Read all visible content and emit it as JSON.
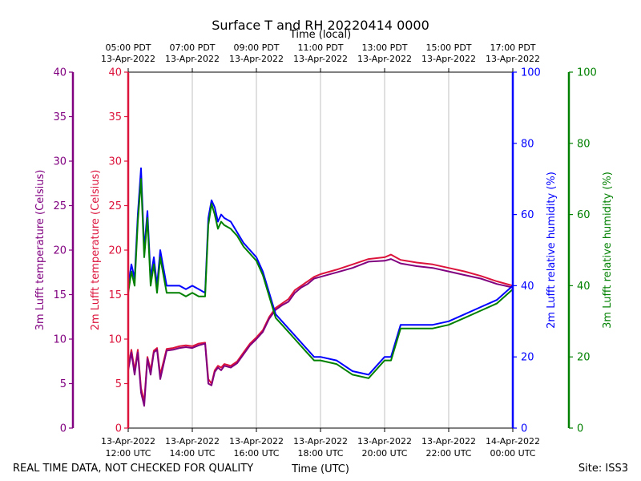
{
  "chart_data": {
    "type": "line",
    "title": "Surface T and RH 20220414 0000",
    "top_axis_label": "Time (local)",
    "bottom_axis_label": "Time (UTC)",
    "footer_left": "REAL TIME DATA, NOT CHECKED FOR QUALITY",
    "footer_right": "Site: ISS3",
    "x_range_hours_utc": [
      12,
      24
    ],
    "bottom_ticks": [
      {
        "hour": 12,
        "line1": "13-Apr-2022",
        "line2": "12:00 UTC"
      },
      {
        "hour": 14,
        "line1": "13-Apr-2022",
        "line2": "14:00 UTC"
      },
      {
        "hour": 16,
        "line1": "13-Apr-2022",
        "line2": "16:00 UTC"
      },
      {
        "hour": 18,
        "line1": "13-Apr-2022",
        "line2": "18:00 UTC"
      },
      {
        "hour": 20,
        "line1": "13-Apr-2022",
        "line2": "20:00 UTC"
      },
      {
        "hour": 22,
        "line1": "13-Apr-2022",
        "line2": "22:00 UTC"
      },
      {
        "hour": 24,
        "line1": "14-Apr-2022",
        "line2": "00:00 UTC"
      }
    ],
    "top_ticks": [
      {
        "hour": 12,
        "line1": "05:00 PDT",
        "line2": "13-Apr-2022"
      },
      {
        "hour": 14,
        "line1": "07:00 PDT",
        "line2": "13-Apr-2022"
      },
      {
        "hour": 16,
        "line1": "09:00 PDT",
        "line2": "13-Apr-2022"
      },
      {
        "hour": 18,
        "line1": "11:00 PDT",
        "line2": "13-Apr-2022"
      },
      {
        "hour": 20,
        "line1": "13:00 PDT",
        "line2": "13-Apr-2022"
      },
      {
        "hour": 22,
        "line1": "15:00 PDT",
        "line2": "13-Apr-2022"
      },
      {
        "hour": 24,
        "line1": "17:00 PDT",
        "line2": "13-Apr-2022"
      }
    ],
    "y_axes": [
      {
        "id": "t3m",
        "label": "3m Lufft temperature (Celsius)",
        "color": "#800080",
        "range": [
          0,
          40
        ],
        "ticks": [
          0,
          5,
          10,
          15,
          20,
          25,
          30,
          35,
          40
        ]
      },
      {
        "id": "t2m",
        "label": "2m Lufft temperature (Celsius)",
        "color": "#dc143c",
        "range": [
          0,
          40
        ],
        "ticks": [
          0,
          5,
          10,
          15,
          20,
          25,
          30,
          35,
          40
        ]
      },
      {
        "id": "rh2m",
        "label": "2m Lufft relative humidity (%)",
        "color": "#0000ff",
        "range": [
          0,
          100
        ],
        "ticks": [
          0,
          20,
          40,
          60,
          80,
          100
        ]
      },
      {
        "id": "rh3m",
        "label": "3m Lufft relative humidity (%)",
        "color": "#008000",
        "range": [
          0,
          100
        ],
        "ticks": [
          0,
          20,
          40,
          60,
          80,
          100
        ]
      }
    ],
    "grid": "vertical",
    "series": [
      {
        "axis": "t2m",
        "color": "#dc143c",
        "x": [
          12.0,
          12.1,
          12.2,
          12.3,
          12.4,
          12.5,
          12.6,
          12.7,
          12.8,
          12.9,
          13.0,
          13.2,
          13.4,
          13.6,
          13.8,
          14.0,
          14.2,
          14.4,
          14.5,
          14.6,
          14.7,
          14.8,
          14.9,
          15.0,
          15.2,
          15.4,
          15.6,
          15.8,
          16.0,
          16.2,
          16.4,
          16.6,
          16.8,
          17.0,
          17.2,
          17.4,
          17.6,
          17.8,
          18.0,
          18.5,
          19.0,
          19.5,
          20.0,
          20.2,
          20.5,
          21.0,
          21.5,
          22.0,
          22.5,
          23.0,
          23.5,
          24.0
        ],
        "y": [
          7.0,
          8.8,
          6.5,
          8.8,
          4.5,
          3.0,
          8.0,
          6.5,
          8.7,
          9.0,
          6.0,
          8.9,
          9.0,
          9.2,
          9.3,
          9.2,
          9.5,
          9.6,
          5.5,
          5.0,
          6.5,
          7.0,
          6.8,
          7.2,
          7.0,
          7.5,
          8.5,
          9.5,
          10.2,
          11.0,
          12.5,
          13.5,
          14.0,
          14.5,
          15.5,
          16.0,
          16.5,
          17.0,
          17.3,
          17.8,
          18.4,
          19.0,
          19.2,
          19.5,
          18.9,
          18.6,
          18.4,
          18.0,
          17.6,
          17.1,
          16.5,
          16.0
        ]
      },
      {
        "axis": "t3m",
        "color": "#800080",
        "x": [
          12.0,
          12.1,
          12.2,
          12.3,
          12.4,
          12.5,
          12.6,
          12.7,
          12.8,
          12.9,
          13.0,
          13.2,
          13.4,
          13.6,
          13.8,
          14.0,
          14.2,
          14.4,
          14.5,
          14.6,
          14.7,
          14.8,
          14.9,
          15.0,
          15.2,
          15.4,
          15.6,
          15.8,
          16.0,
          16.2,
          16.4,
          16.6,
          16.8,
          17.0,
          17.2,
          17.4,
          17.6,
          17.8,
          18.0,
          18.5,
          19.0,
          19.5,
          20.0,
          20.2,
          20.5,
          21.0,
          21.5,
          22.0,
          22.5,
          23.0,
          23.5,
          24.0
        ],
        "y": [
          6.5,
          8.5,
          6.0,
          8.5,
          4.0,
          2.5,
          7.8,
          6.0,
          8.5,
          8.8,
          5.5,
          8.7,
          8.8,
          9.0,
          9.1,
          9.0,
          9.3,
          9.5,
          5.0,
          4.8,
          6.3,
          6.8,
          6.5,
          7.0,
          6.8,
          7.3,
          8.3,
          9.3,
          10.0,
          10.8,
          12.3,
          13.3,
          13.8,
          14.2,
          15.2,
          15.8,
          16.2,
          16.8,
          17.0,
          17.5,
          18.0,
          18.7,
          18.8,
          19.0,
          18.5,
          18.2,
          18.0,
          17.6,
          17.2,
          16.8,
          16.2,
          15.8
        ]
      },
      {
        "axis": "rh2m",
        "color": "#0000ff",
        "x": [
          12.0,
          12.1,
          12.2,
          12.3,
          12.4,
          12.5,
          12.6,
          12.7,
          12.8,
          12.9,
          13.0,
          13.2,
          13.4,
          13.6,
          13.8,
          14.0,
          14.2,
          14.4,
          14.5,
          14.6,
          14.7,
          14.8,
          14.9,
          15.0,
          15.2,
          15.4,
          15.6,
          15.8,
          16.0,
          16.2,
          16.4,
          16.6,
          16.8,
          17.0,
          17.2,
          17.4,
          17.6,
          17.8,
          18.0,
          18.5,
          19.0,
          19.5,
          20.0,
          20.2,
          20.5,
          21.0,
          21.5,
          22.0,
          22.5,
          23.0,
          23.5,
          24.0
        ],
        "y": [
          40,
          46,
          42,
          60,
          73,
          50,
          61,
          42,
          48,
          40,
          50,
          40,
          40,
          40,
          39,
          40,
          39,
          38,
          59,
          64,
          62,
          58,
          60,
          59,
          58,
          55,
          52,
          50,
          48,
          44,
          38,
          32,
          30,
          28,
          26,
          24,
          22,
          20,
          20,
          19,
          16,
          15,
          20,
          20,
          29,
          29,
          29,
          30,
          32,
          34,
          36,
          40
        ]
      },
      {
        "axis": "rh3m",
        "color": "#008000",
        "x": [
          12.0,
          12.1,
          12.2,
          12.3,
          12.4,
          12.5,
          12.6,
          12.7,
          12.8,
          12.9,
          13.0,
          13.2,
          13.4,
          13.6,
          13.8,
          14.0,
          14.2,
          14.4,
          14.5,
          14.6,
          14.7,
          14.8,
          14.9,
          15.0,
          15.2,
          15.4,
          15.6,
          15.8,
          16.0,
          16.2,
          16.4,
          16.6,
          16.8,
          17.0,
          17.2,
          17.4,
          17.6,
          17.8,
          18.0,
          18.5,
          19.0,
          19.5,
          20.0,
          20.2,
          20.5,
          21.0,
          21.5,
          22.0,
          22.5,
          23.0,
          23.5,
          24.0
        ],
        "y": [
          38,
          44,
          40,
          58,
          70,
          48,
          59,
          40,
          46,
          38,
          48,
          38,
          38,
          38,
          37,
          38,
          37,
          37,
          57,
          63,
          60,
          56,
          58,
          57,
          56,
          54,
          51,
          49,
          47,
          43,
          37,
          31,
          29,
          27,
          25,
          23,
          21,
          19,
          19,
          18,
          15,
          14,
          19,
          19,
          28,
          28,
          28,
          29,
          31,
          33,
          35,
          39
        ]
      }
    ]
  }
}
